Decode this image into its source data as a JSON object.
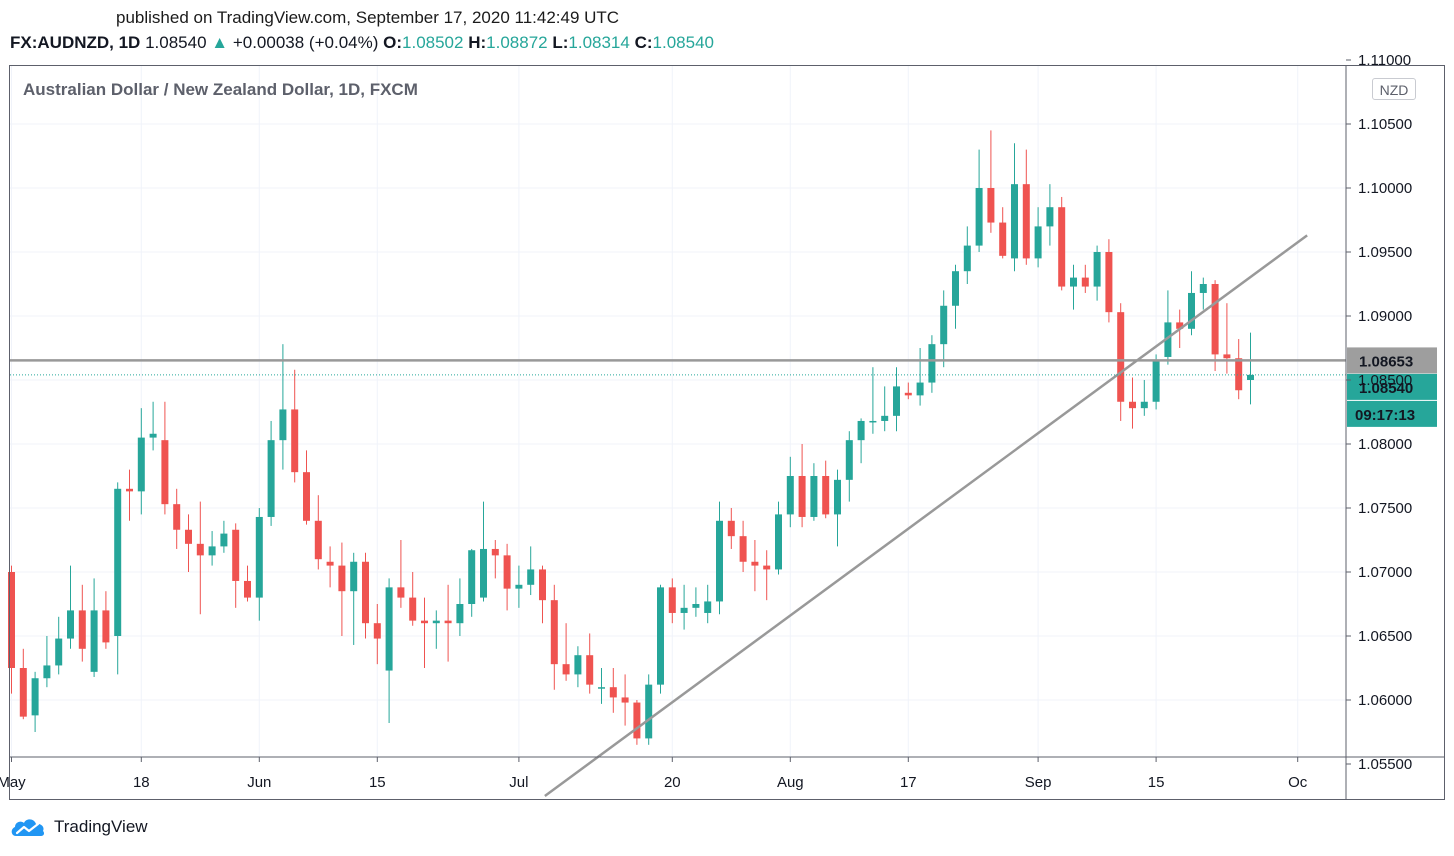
{
  "header": {
    "published": "published on TradingView.com, September 17, 2020 11:42:49 UTC",
    "symbol": "FX:AUDNZD, 1D",
    "last": "1.08540",
    "arrow": "▲",
    "change": "+0.00038 (+0.04%)",
    "o_label": "O:",
    "o_value": "1.08502",
    "h_label": "H:",
    "h_value": "1.08872",
    "l_label": "L:",
    "l_value": "1.08314",
    "c_label": "C:",
    "c_value": "1.08540"
  },
  "chart_title": "Australian Dollar / New Zealand Dollar, 1D, FXCM",
  "currency_badge": "NZD",
  "footer": {
    "brand": "TradingView"
  },
  "colors": {
    "up": "#26a69a",
    "down": "#ef5350",
    "line": "#999999",
    "grid": "#f0f3fa",
    "hline_badge": "#9e9e9e"
  },
  "chart_data": {
    "type": "candlestick",
    "title": "Australian Dollar / New Zealand Dollar, 1D, FXCM",
    "ylim": [
      1.0525,
      1.111
    ],
    "grid": true,
    "y_ticks": [
      "1.11000",
      "1.10500",
      "1.10000",
      "1.09500",
      "1.09000",
      "1.08500",
      "1.08000",
      "1.07500",
      "1.07000",
      "1.06500",
      "1.06000",
      "1.05500"
    ],
    "x_ticks": [
      {
        "label": "May",
        "i": 0
      },
      {
        "label": "18",
        "i": 11
      },
      {
        "label": "Jun",
        "i": 21
      },
      {
        "label": "15",
        "i": 31
      },
      {
        "label": "Jul",
        "i": 43
      },
      {
        "label": "20",
        "i": 56
      },
      {
        "label": "Aug",
        "i": 66
      },
      {
        "label": "17",
        "i": 76
      },
      {
        "label": "Sep",
        "i": 87
      },
      {
        "label": "15",
        "i": 97
      },
      {
        "label": "Oc",
        "i": 109
      }
    ],
    "horizontal_line": {
      "value": 1.08653,
      "label": "1.08653"
    },
    "last_price": {
      "value": 1.0854,
      "label": "1.08540",
      "countdown": "09:17:13"
    },
    "trendline": {
      "from": {
        "i": 45.2,
        "y": 1.0525
      },
      "to": {
        "i": 109.8,
        "y": 1.0963
      }
    },
    "candles": [
      {
        "o": 1.07,
        "h": 1.0705,
        "l": 1.0605,
        "c": 1.0625
      },
      {
        "o": 1.0625,
        "h": 1.064,
        "l": 1.0585,
        "c": 1.0587
      },
      {
        "o": 1.0588,
        "h": 1.0622,
        "l": 1.0575,
        "c": 1.0617
      },
      {
        "o": 1.0617,
        "h": 1.065,
        "l": 1.061,
        "c": 1.0627
      },
      {
        "o": 1.0627,
        "h": 1.0665,
        "l": 1.062,
        "c": 1.0648
      },
      {
        "o": 1.0648,
        "h": 1.0705,
        "l": 1.064,
        "c": 1.067
      },
      {
        "o": 1.067,
        "h": 1.069,
        "l": 1.063,
        "c": 1.064
      },
      {
        "o": 1.0622,
        "h": 1.0695,
        "l": 1.0618,
        "c": 1.067
      },
      {
        "o": 1.067,
        "h": 1.0685,
        "l": 1.064,
        "c": 1.0645
      },
      {
        "o": 1.065,
        "h": 1.077,
        "l": 1.062,
        "c": 1.0765
      },
      {
        "o": 1.0765,
        "h": 1.078,
        "l": 1.074,
        "c": 1.0763
      },
      {
        "o": 1.0763,
        "h": 1.0828,
        "l": 1.0745,
        "c": 1.0805
      },
      {
        "o": 1.0805,
        "h": 1.0833,
        "l": 1.0795,
        "c": 1.0808
      },
      {
        "o": 1.0803,
        "h": 1.0833,
        "l": 1.0745,
        "c": 1.0753
      },
      {
        "o": 1.0753,
        "h": 1.0765,
        "l": 1.0718,
        "c": 1.0733
      },
      {
        "o": 1.0733,
        "h": 1.0745,
        "l": 1.07,
        "c": 1.0722
      },
      {
        "o": 1.0722,
        "h": 1.0755,
        "l": 1.0667,
        "c": 1.0713
      },
      {
        "o": 1.0713,
        "h": 1.0732,
        "l": 1.0705,
        "c": 1.072
      },
      {
        "o": 1.072,
        "h": 1.074,
        "l": 1.0715,
        "c": 1.073
      },
      {
        "o": 1.0733,
        "h": 1.0738,
        "l": 1.0672,
        "c": 1.0693
      },
      {
        "o": 1.0693,
        "h": 1.0705,
        "l": 1.0677,
        "c": 1.068
      },
      {
        "o": 1.068,
        "h": 1.075,
        "l": 1.0662,
        "c": 1.0743
      },
      {
        "o": 1.0743,
        "h": 1.0818,
        "l": 1.0736,
        "c": 1.0803
      },
      {
        "o": 1.0803,
        "h": 1.0878,
        "l": 1.078,
        "c": 1.0827
      },
      {
        "o": 1.0827,
        "h": 1.0858,
        "l": 1.077,
        "c": 1.0778
      },
      {
        "o": 1.0778,
        "h": 1.0795,
        "l": 1.0737,
        "c": 1.074
      },
      {
        "o": 1.074,
        "h": 1.076,
        "l": 1.0702,
        "c": 1.071
      },
      {
        "o": 1.0708,
        "h": 1.072,
        "l": 1.0688,
        "c": 1.0705
      },
      {
        "o": 1.0705,
        "h": 1.0723,
        "l": 1.065,
        "c": 1.0685
      },
      {
        "o": 1.0685,
        "h": 1.0715,
        "l": 1.0643,
        "c": 1.0708
      },
      {
        "o": 1.0708,
        "h": 1.0715,
        "l": 1.0648,
        "c": 1.066
      },
      {
        "o": 1.066,
        "h": 1.0675,
        "l": 1.0628,
        "c": 1.0648
      },
      {
        "o": 1.0623,
        "h": 1.0695,
        "l": 1.0582,
        "c": 1.0688
      },
      {
        "o": 1.0688,
        "h": 1.0725,
        "l": 1.0672,
        "c": 1.068
      },
      {
        "o": 1.068,
        "h": 1.07,
        "l": 1.0658,
        "c": 1.0662
      },
      {
        "o": 1.0662,
        "h": 1.068,
        "l": 1.0625,
        "c": 1.066
      },
      {
        "o": 1.066,
        "h": 1.067,
        "l": 1.064,
        "c": 1.0662
      },
      {
        "o": 1.0662,
        "h": 1.069,
        "l": 1.063,
        "c": 1.066
      },
      {
        "o": 1.066,
        "h": 1.0695,
        "l": 1.065,
        "c": 1.0675
      },
      {
        "o": 1.0675,
        "h": 1.0718,
        "l": 1.0665,
        "c": 1.0717
      },
      {
        "o": 1.068,
        "h": 1.0755,
        "l": 1.0677,
        "c": 1.0718
      },
      {
        "o": 1.0718,
        "h": 1.0725,
        "l": 1.0695,
        "c": 1.0713
      },
      {
        "o": 1.0713,
        "h": 1.0722,
        "l": 1.067,
        "c": 1.0687
      },
      {
        "o": 1.0687,
        "h": 1.0705,
        "l": 1.0672,
        "c": 1.069
      },
      {
        "o": 1.069,
        "h": 1.072,
        "l": 1.0682,
        "c": 1.0702
      },
      {
        "o": 1.0702,
        "h": 1.0705,
        "l": 1.066,
        "c": 1.0678
      },
      {
        "o": 1.0678,
        "h": 1.069,
        "l": 1.0608,
        "c": 1.0628
      },
      {
        "o": 1.0628,
        "h": 1.066,
        "l": 1.0615,
        "c": 1.062
      },
      {
        "o": 1.062,
        "h": 1.0642,
        "l": 1.061,
        "c": 1.0635
      },
      {
        "o": 1.0635,
        "h": 1.0652,
        "l": 1.0605,
        "c": 1.0612
      },
      {
        "o": 1.061,
        "h": 1.0625,
        "l": 1.0597,
        "c": 1.061
      },
      {
        "o": 1.061,
        "h": 1.0625,
        "l": 1.059,
        "c": 1.0602
      },
      {
        "o": 1.0602,
        "h": 1.062,
        "l": 1.058,
        "c": 1.0598
      },
      {
        "o": 1.0598,
        "h": 1.06,
        "l": 1.0565,
        "c": 1.057
      },
      {
        "o": 1.057,
        "h": 1.062,
        "l": 1.0565,
        "c": 1.0612
      },
      {
        "o": 1.0612,
        "h": 1.069,
        "l": 1.0605,
        "c": 1.0688
      },
      {
        "o": 1.0688,
        "h": 1.0695,
        "l": 1.066,
        "c": 1.0668
      },
      {
        "o": 1.0668,
        "h": 1.069,
        "l": 1.0655,
        "c": 1.0672
      },
      {
        "o": 1.0672,
        "h": 1.0688,
        "l": 1.0665,
        "c": 1.0675
      },
      {
        "o": 1.0668,
        "h": 1.069,
        "l": 1.066,
        "c": 1.0677
      },
      {
        "o": 1.0677,
        "h": 1.0755,
        "l": 1.0667,
        "c": 1.074
      },
      {
        "o": 1.074,
        "h": 1.075,
        "l": 1.0718,
        "c": 1.0728
      },
      {
        "o": 1.0728,
        "h": 1.074,
        "l": 1.07,
        "c": 1.0708
      },
      {
        "o": 1.0708,
        "h": 1.0725,
        "l": 1.0685,
        "c": 1.0705
      },
      {
        "o": 1.0705,
        "h": 1.0717,
        "l": 1.0678,
        "c": 1.0702
      },
      {
        "o": 1.0702,
        "h": 1.0755,
        "l": 1.0698,
        "c": 1.0745
      },
      {
        "o": 1.0745,
        "h": 1.079,
        "l": 1.0735,
        "c": 1.0775
      },
      {
        "o": 1.0775,
        "h": 1.08,
        "l": 1.0735,
        "c": 1.0743
      },
      {
        "o": 1.0743,
        "h": 1.0785,
        "l": 1.074,
        "c": 1.0775
      },
      {
        "o": 1.0775,
        "h": 1.0787,
        "l": 1.0742,
        "c": 1.0745
      },
      {
        "o": 1.0745,
        "h": 1.078,
        "l": 1.072,
        "c": 1.0772
      },
      {
        "o": 1.0772,
        "h": 1.081,
        "l": 1.0755,
        "c": 1.0803
      },
      {
        "o": 1.0803,
        "h": 1.082,
        "l": 1.0785,
        "c": 1.0818
      },
      {
        "o": 1.0818,
        "h": 1.086,
        "l": 1.0808,
        "c": 1.0818
      },
      {
        "o": 1.0818,
        "h": 1.0845,
        "l": 1.081,
        "c": 1.0822
      },
      {
        "o": 1.0822,
        "h": 1.086,
        "l": 1.081,
        "c": 1.0845
      },
      {
        "o": 1.084,
        "h": 1.0848,
        "l": 1.0835,
        "c": 1.0838
      },
      {
        "o": 1.0838,
        "h": 1.0875,
        "l": 1.083,
        "c": 1.0848
      },
      {
        "o": 1.0848,
        "h": 1.0885,
        "l": 1.084,
        "c": 1.0878
      },
      {
        "o": 1.0878,
        "h": 1.092,
        "l": 1.086,
        "c": 1.0908
      },
      {
        "o": 1.0908,
        "h": 1.094,
        "l": 1.089,
        "c": 1.0935
      },
      {
        "o": 1.0935,
        "h": 1.097,
        "l": 1.0925,
        "c": 1.0955
      },
      {
        "o": 1.0955,
        "h": 1.103,
        "l": 1.095,
        "c": 1.1
      },
      {
        "o": 1.1,
        "h": 1.1045,
        "l": 1.0965,
        "c": 1.0973
      },
      {
        "o": 1.0973,
        "h": 1.0985,
        "l": 1.0945,
        "c": 1.0947
      },
      {
        "o": 1.0945,
        "h": 1.1035,
        "l": 1.0935,
        "c": 1.1003
      },
      {
        "o": 1.1003,
        "h": 1.103,
        "l": 1.094,
        "c": 1.0945
      },
      {
        "o": 1.0945,
        "h": 1.0985,
        "l": 1.0938,
        "c": 1.097
      },
      {
        "o": 1.097,
        "h": 1.1003,
        "l": 1.0955,
        "c": 1.0985
      },
      {
        "o": 1.0985,
        "h": 1.0993,
        "l": 1.092,
        "c": 1.0923
      },
      {
        "o": 1.0923,
        "h": 1.094,
        "l": 1.0905,
        "c": 1.093
      },
      {
        "o": 1.093,
        "h": 1.094,
        "l": 1.0918,
        "c": 1.0923
      },
      {
        "o": 1.0923,
        "h": 1.0955,
        "l": 1.0912,
        "c": 1.095
      },
      {
        "o": 1.095,
        "h": 1.096,
        "l": 1.0895,
        "c": 1.0903
      },
      {
        "o": 1.0903,
        "h": 1.091,
        "l": 1.0818,
        "c": 1.0833
      },
      {
        "o": 1.0833,
        "h": 1.0852,
        "l": 1.0812,
        "c": 1.0828
      },
      {
        "o": 1.0828,
        "h": 1.085,
        "l": 1.0822,
        "c": 1.0833
      },
      {
        "o": 1.0833,
        "h": 1.087,
        "l": 1.0827,
        "c": 1.0865
      },
      {
        "o": 1.0868,
        "h": 1.092,
        "l": 1.0862,
        "c": 1.0895
      },
      {
        "o": 1.0895,
        "h": 1.0905,
        "l": 1.0875,
        "c": 1.089
      },
      {
        "o": 1.089,
        "h": 1.0935,
        "l": 1.0885,
        "c": 1.0918
      },
      {
        "o": 1.0918,
        "h": 1.093,
        "l": 1.0905,
        "c": 1.0925
      },
      {
        "o": 1.0925,
        "h": 1.0928,
        "l": 1.0857,
        "c": 1.087
      },
      {
        "o": 1.087,
        "h": 1.091,
        "l": 1.0855,
        "c": 1.0867
      },
      {
        "o": 1.0867,
        "h": 1.0882,
        "l": 1.0835,
        "c": 1.0842
      },
      {
        "o": 1.085,
        "h": 1.0887,
        "l": 1.0831,
        "c": 1.0854
      }
    ]
  }
}
